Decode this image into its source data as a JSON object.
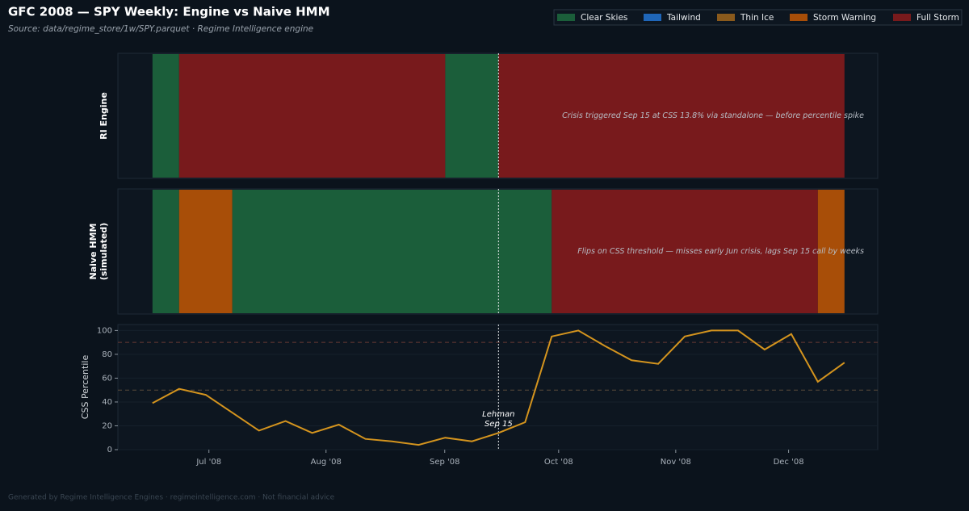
{
  "title": "GFC 2008 — SPY Weekly: Engine vs Naive HMM",
  "subtitle": "Source: data/regime_store/1w/SPY.parquet · Regime Intelligence engine",
  "footer": "Generated by Regime Intelligence Engines · regimeintelligence.com · Not financial advice",
  "legend": [
    {
      "name": "Clear Skies",
      "color": "#1b5e3a"
    },
    {
      "name": "Tailwind",
      "color": "#1f66b8"
    },
    {
      "name": "Thin Ice",
      "color": "#8a5a1c"
    },
    {
      "name": "Storm Warning",
      "color": "#a84e08"
    },
    {
      "name": "Full Storm",
      "color": "#781a1c"
    }
  ],
  "event": {
    "x": 13,
    "label": "Lehman",
    "sublabel": "Sep 15"
  },
  "chart_data": [
    {
      "type": "timeline",
      "ylabel": "RI Engine",
      "annotation": "Crisis triggered Sep 15 at CSS 13.8% via standalone — before percentile spike",
      "segments": [
        {
          "start": 0,
          "end": 1,
          "state": 0
        },
        {
          "start": 1,
          "end": 11,
          "state": 4
        },
        {
          "start": 11,
          "end": 13,
          "state": 0
        },
        {
          "start": 13,
          "end": 26,
          "state": 4
        }
      ]
    },
    {
      "type": "timeline",
      "ylabel": "Naive HMM",
      "ylabel2": "(simulated)",
      "annotation": "Flips on CSS threshold — misses early Jun crisis, lags Sep 15 call by weeks",
      "segments": [
        {
          "start": 0,
          "end": 1,
          "state": 0
        },
        {
          "start": 1,
          "end": 3,
          "state": 3
        },
        {
          "start": 3,
          "end": 15,
          "state": 0
        },
        {
          "start": 15,
          "end": 25,
          "state": 4
        },
        {
          "start": 25,
          "end": 26,
          "state": 3
        }
      ]
    },
    {
      "type": "line",
      "ylabel": "CSS Percentile",
      "color": "#d4941e",
      "x": [
        0,
        1,
        2,
        3,
        4,
        5,
        6,
        7,
        8,
        9,
        10,
        11,
        12,
        13,
        14,
        15,
        16,
        17,
        18,
        19,
        20,
        21,
        22,
        23,
        24,
        25,
        26
      ],
      "values": [
        39,
        51,
        46,
        31,
        16,
        24,
        14,
        21,
        9,
        7,
        4,
        10,
        7,
        14,
        23,
        95,
        100,
        87,
        75,
        72,
        95,
        100,
        100,
        84,
        97,
        57,
        73
      ],
      "reference_lines": [
        90,
        50
      ],
      "xlim": [
        -1.3,
        27.25
      ],
      "xticks": [
        {
          "value": 2.12,
          "label": "Jul '08"
        },
        {
          "value": 6.52,
          "label": "Aug '08"
        },
        {
          "value": 10.98,
          "label": "Sep '08"
        },
        {
          "value": 15.26,
          "label": "Oct '08"
        },
        {
          "value": 19.66,
          "label": "Nov '08"
        },
        {
          "value": 23.9,
          "label": "Dec '08"
        }
      ],
      "ylim": [
        0,
        105
      ],
      "yticks": [
        0,
        20,
        40,
        60,
        80,
        100
      ],
      "grid": true
    }
  ]
}
